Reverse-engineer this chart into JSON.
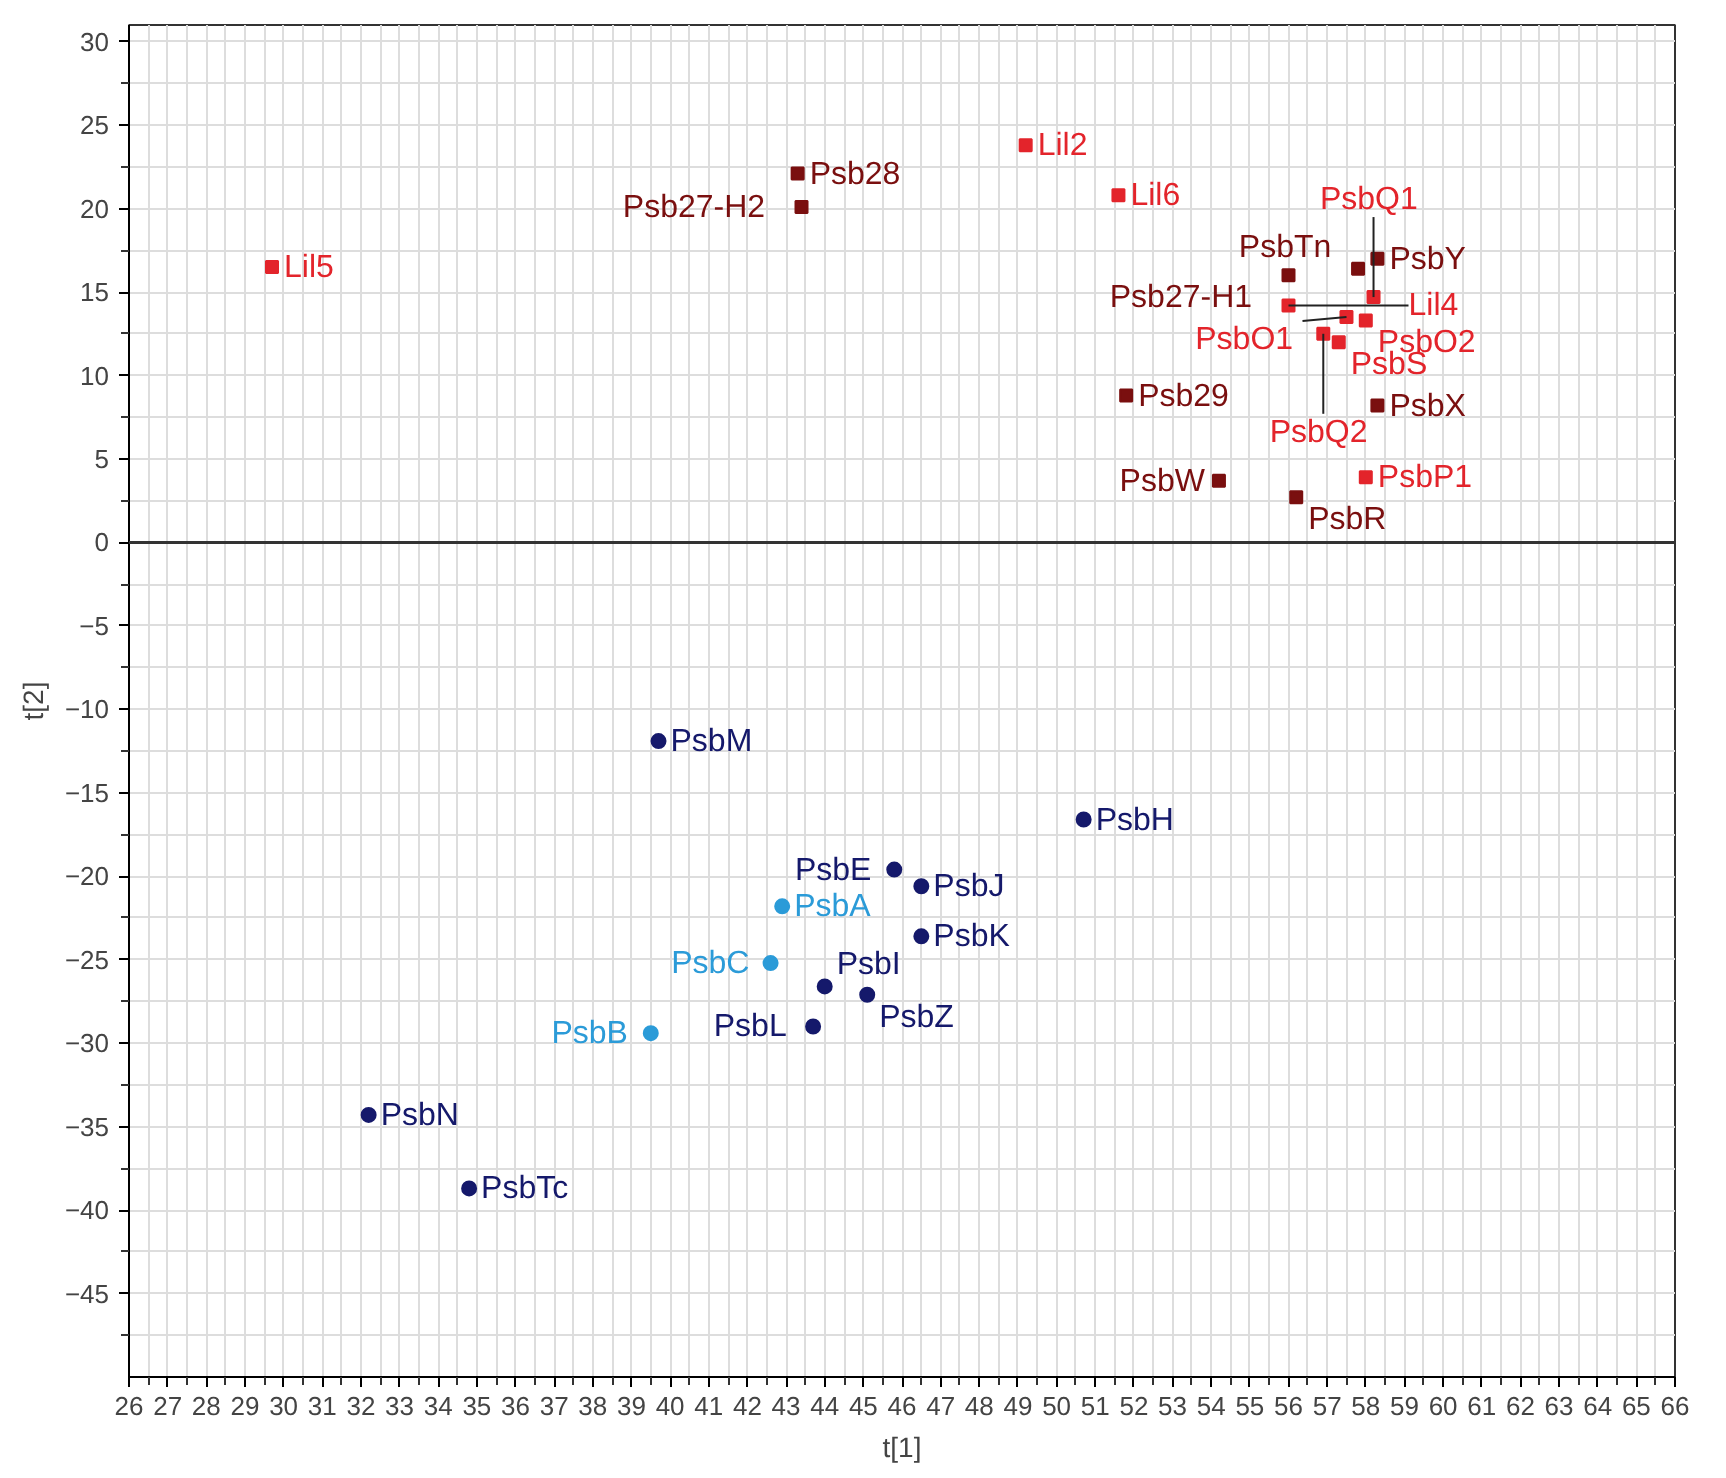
{
  "chart_data": {
    "type": "scatter",
    "xlabel": "t[1]",
    "ylabel": "t[2]",
    "xlim": [
      26,
      66
    ],
    "ylim": [
      -50,
      31
    ],
    "xticks": [
      26,
      27,
      28,
      29,
      30,
      31,
      32,
      33,
      34,
      35,
      36,
      37,
      38,
      39,
      40,
      41,
      42,
      43,
      44,
      45,
      46,
      47,
      48,
      49,
      50,
      51,
      52,
      53,
      54,
      55,
      56,
      57,
      58,
      59,
      60,
      61,
      62,
      63,
      64,
      65,
      66,
      {
        "value": 26.5,
        "label": null
      },
      {
        "value": 27.5,
        "label": null
      },
      {
        "value": 28.5,
        "label": null
      },
      {
        "value": 29.5,
        "label": null
      },
      {
        "value": 30.5,
        "label": null
      },
      {
        "value": 31.5,
        "label": null
      },
      {
        "value": 32.5,
        "label": null
      },
      {
        "value": 33.5,
        "label": null
      },
      {
        "value": 34.5,
        "label": null
      },
      {
        "value": 35.5,
        "label": null
      },
      {
        "value": 36.5,
        "label": null
      },
      {
        "value": 37.5,
        "label": null
      },
      {
        "value": 38.5,
        "label": null
      },
      {
        "value": 39.5,
        "label": null
      },
      {
        "value": 40.5,
        "label": null
      },
      {
        "value": 41.5,
        "label": null
      },
      {
        "value": 42.5,
        "label": null
      },
      {
        "value": 43.5,
        "label": null
      },
      {
        "value": 44.5,
        "label": null
      },
      {
        "value": 45.5,
        "label": null
      },
      {
        "value": 46.5,
        "label": null
      },
      {
        "value": 47.5,
        "label": null
      },
      {
        "value": 48.5,
        "label": null
      },
      {
        "value": 49.5,
        "label": null
      },
      {
        "value": 50.5,
        "label": null
      },
      {
        "value": 51.5,
        "label": null
      },
      {
        "value": 52.5,
        "label": null
      },
      {
        "value": 53.5,
        "label": null
      },
      {
        "value": 54.5,
        "label": null
      },
      {
        "value": 55.5,
        "label": null
      },
      {
        "value": 56.5,
        "label": null
      },
      {
        "value": 57.5,
        "label": null
      },
      {
        "value": 58.5,
        "label": null
      },
      {
        "value": 59.5,
        "label": null
      },
      {
        "value": 60.5,
        "label": null
      },
      {
        "value": 61.5,
        "label": null
      },
      {
        "value": 62.5,
        "label": null
      },
      {
        "value": 63.5,
        "label": null
      },
      {
        "value": 64.5,
        "label": null
      },
      {
        "value": 65.5,
        "label": null
      }
    ],
    "yticks": [
      -45,
      -40,
      -35,
      -30,
      -25,
      -20,
      -15,
      -10,
      -5,
      0,
      5,
      10,
      15,
      20,
      25,
      30,
      {
        "value": -47.5,
        "label": null
      },
      {
        "value": -42.5,
        "label": null
      },
      {
        "value": -37.5,
        "label": null
      },
      {
        "value": -32.5,
        "label": null
      },
      {
        "value": -27.5,
        "label": null
      },
      {
        "value": -22.5,
        "label": null
      },
      {
        "value": -17.5,
        "label": null
      },
      {
        "value": -12.5,
        "label": null
      },
      {
        "value": -7.5,
        "label": null
      },
      {
        "value": -2.5,
        "label": null
      },
      {
        "value": 2.5,
        "label": null
      },
      {
        "value": 7.5,
        "label": null
      },
      {
        "value": 12.5,
        "label": null
      },
      {
        "value": 17.5,
        "label": null
      },
      {
        "value": 22.5,
        "label": null
      },
      {
        "value": 27.5,
        "label": null
      }
    ],
    "grid": true,
    "ref_lines": [
      {
        "axis": "y",
        "value": 0,
        "color": "#333333"
      }
    ],
    "series": [
      {
        "color": "#7a0f0f",
        "marker": "square",
        "x": [
          43.3,
          43.4,
          57.8,
          58.3,
          56.0,
          58.3,
          51.8,
          54.2,
          56.2
        ],
        "values": [
          22.1,
          20.1,
          16.4,
          17.0,
          16.0,
          8.2,
          8.8,
          3.7,
          2.7
        ]
      },
      {
        "color": "#e3242b",
        "marker": "square",
        "x": [
          29.7,
          49.2,
          51.6,
          56.0,
          58.2,
          58.0,
          57.5,
          56.9,
          57.3,
          58.0
        ],
        "values": [
          16.5,
          23.8,
          20.8,
          14.2,
          14.7,
          13.3,
          13.5,
          12.5,
          12.0,
          3.9
        ]
      },
      {
        "color": "#15196b",
        "marker": "circle",
        "x": [
          39.7,
          50.7,
          45.8,
          46.5,
          46.5,
          44.0,
          45.1,
          43.7,
          32.2,
          34.8
        ],
        "values": [
          -11.9,
          -16.6,
          -19.6,
          -20.6,
          -23.6,
          -26.6,
          -27.1,
          -29.0,
          -34.3,
          -38.7
        ]
      },
      {
        "color": "#2b9bd8",
        "marker": "circle",
        "x": [
          42.9,
          42.6,
          39.5
        ],
        "values": [
          -21.8,
          -25.2,
          -29.4
        ]
      }
    ],
    "annotations": [
      {
        "text": "Psb28",
        "x": 43.3,
        "y": 22.1
      },
      {
        "text": "Psb27-H2",
        "x": 43.4,
        "y": 20.1
      },
      {
        "text": "PsbTn",
        "x": 57.8,
        "y": 16.4
      },
      {
        "text": "PsbY",
        "x": 58.3,
        "y": 17.0
      },
      {
        "text": "Psb27-H1",
        "x": 56.0,
        "y": 16.0
      },
      {
        "text": "PsbX",
        "x": 58.3,
        "y": 8.2
      },
      {
        "text": "Psb29",
        "x": 51.8,
        "y": 8.8
      },
      {
        "text": "PsbW",
        "x": 54.2,
        "y": 3.7
      },
      {
        "text": "PsbR",
        "x": 56.2,
        "y": 2.7
      },
      {
        "text": "Lil5",
        "x": 29.7,
        "y": 16.5
      },
      {
        "text": "Lil2",
        "x": 49.2,
        "y": 23.8
      },
      {
        "text": "Lil6",
        "x": 51.6,
        "y": 20.8
      },
      {
        "text": "Lil4",
        "x": 56.0,
        "y": 14.2
      },
      {
        "text": "PsbQ1",
        "x": 58.2,
        "y": 14.7
      },
      {
        "text": "PsbO2",
        "x": 58.0,
        "y": 13.3
      },
      {
        "text": "PsbO1",
        "x": 57.5,
        "y": 13.5
      },
      {
        "text": "PsbQ2",
        "x": 56.9,
        "y": 12.5
      },
      {
        "text": "PsbS",
        "x": 57.3,
        "y": 12.0
      },
      {
        "text": "PsbP1",
        "x": 58.0,
        "y": 3.9
      },
      {
        "text": "PsbM",
        "x": 39.7,
        "y": -11.9
      },
      {
        "text": "PsbH",
        "x": 50.7,
        "y": -16.6
      },
      {
        "text": "PsbE",
        "x": 45.8,
        "y": -19.6
      },
      {
        "text": "PsbJ",
        "x": 46.5,
        "y": -20.6
      },
      {
        "text": "PsbK",
        "x": 46.5,
        "y": -23.6
      },
      {
        "text": "PsbI",
        "x": 44.0,
        "y": -26.6
      },
      {
        "text": "PsbZ",
        "x": 45.1,
        "y": -27.1
      },
      {
        "text": "PsbL",
        "x": 43.7,
        "y": -29.0
      },
      {
        "text": "PsbN",
        "x": 32.2,
        "y": -34.3
      },
      {
        "text": "PsbTc",
        "x": 34.8,
        "y": -38.7
      },
      {
        "text": "PsbA",
        "x": 42.9,
        "y": -21.8
      },
      {
        "text": "PsbC",
        "x": 42.6,
        "y": -25.2
      },
      {
        "text": "PsbB",
        "x": 39.5,
        "y": -29.4
      }
    ]
  }
}
